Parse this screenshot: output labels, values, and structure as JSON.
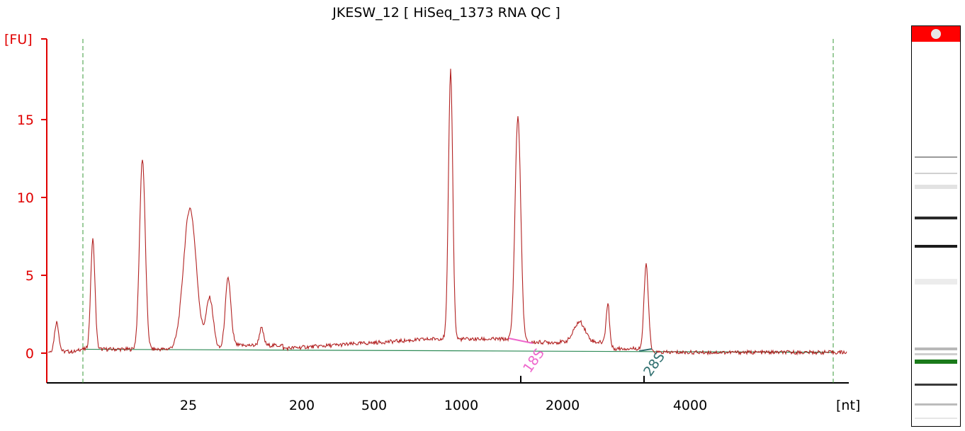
{
  "chart_data": {
    "type": "line",
    "title": "JKESW_12  [ HiSeq_1373 RNA QC ]",
    "ylabel": "[FU]",
    "xlabel": "[nt]",
    "ylim": [
      -2.5,
      20
    ],
    "y_ticks": [
      0,
      5,
      10,
      15
    ],
    "x_tick_labels": [
      "25",
      "200",
      "500",
      "1000",
      "2000",
      "4000"
    ],
    "grid": false,
    "colors": {
      "trace": "#b22222",
      "baseline": "#2e8b57",
      "axis_left": "#e00000",
      "axis_bottom": "#000000",
      "marker_line": "#3a9a3a",
      "label_18s": "#ee66cc",
      "label_28s": "#2f6f6f"
    },
    "annotations": [
      {
        "text": "18S",
        "near_tick": "2000"
      },
      {
        "text": "28S",
        "near_tick": "4000"
      }
    ],
    "peaks": [
      {
        "x": 80,
        "y": 2.0
      },
      {
        "x": 131,
        "y": 7.3
      },
      {
        "x": 201,
        "y": 12.5
      },
      {
        "x": 268,
        "y": 9.3
      },
      {
        "x": 296,
        "y": 3.5
      },
      {
        "x": 322,
        "y": 4.8
      },
      {
        "x": 369,
        "y": 1.6
      },
      {
        "x": 636,
        "y": 18.2
      },
      {
        "x": 731,
        "y": 15.2
      },
      {
        "x": 818,
        "y": 2.0
      },
      {
        "x": 858,
        "y": 3.2
      },
      {
        "x": 912,
        "y": 5.7
      }
    ]
  },
  "gel": {
    "bands": [
      {
        "pos": 0.325,
        "shade": "#9a9a9a",
        "h": 2
      },
      {
        "pos": 0.365,
        "shade": "#d0d0d0",
        "h": 2
      },
      {
        "pos": 0.395,
        "shade": "#e2e2e2",
        "h": 6
      },
      {
        "pos": 0.475,
        "shade": "#2a2a2a",
        "h": 4
      },
      {
        "pos": 0.545,
        "shade": "#1c1c1c",
        "h": 4
      },
      {
        "pos": 0.63,
        "shade": "#ececec",
        "h": 8
      },
      {
        "pos": 0.8,
        "shade": "#b8b8b8",
        "h": 4
      },
      {
        "pos": 0.815,
        "shade": "#cfcfcf",
        "h": 3
      },
      {
        "pos": 0.83,
        "shade": "#1a7a1a",
        "h": 6
      },
      {
        "pos": 0.89,
        "shade": "#3a3a3a",
        "h": 3
      },
      {
        "pos": 0.94,
        "shade": "#bcbcbc",
        "h": 3
      },
      {
        "pos": 0.975,
        "shade": "#e6e6e6",
        "h": 2
      }
    ]
  }
}
